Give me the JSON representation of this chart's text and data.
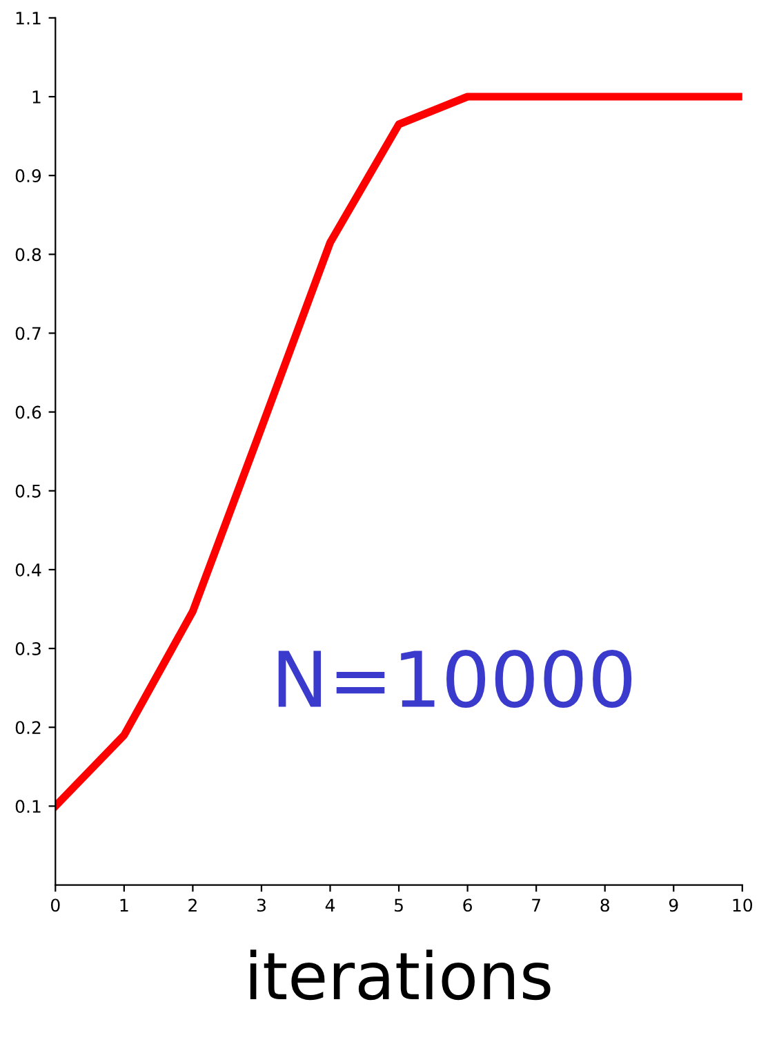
{
  "chart_data": {
    "type": "line",
    "xlabel": "iterations",
    "x": [
      0,
      1,
      2,
      3,
      4,
      5,
      6,
      7,
      8,
      9,
      10
    ],
    "series": [
      {
        "color": "#ff0000",
        "values": [
          0.1,
          0.19,
          0.347,
          0.58,
          0.815,
          0.965,
          1.0,
          1.0,
          1.0,
          1.0,
          1.0
        ]
      }
    ],
    "annotations": [
      "N=10000"
    ],
    "xlim": [
      0,
      10
    ],
    "xticks": [
      0,
      1,
      2,
      3,
      4,
      5,
      6,
      7,
      8,
      9,
      10
    ],
    "ylim": [
      0,
      1.1
    ],
    "yticks": [
      0.1,
      0.2,
      0.3,
      0.4,
      0.5,
      0.6,
      0.7,
      0.8,
      0.9,
      1,
      1.1
    ],
    "grid": false,
    "legend": false,
    "marker": "none",
    "line_style": "solid"
  }
}
